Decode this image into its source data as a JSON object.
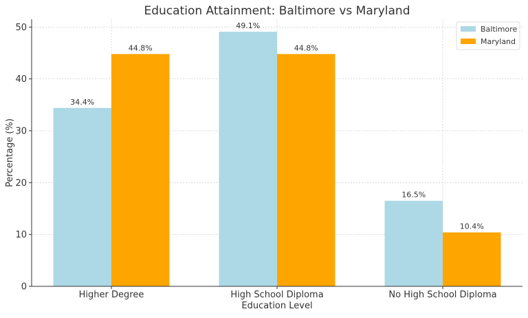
{
  "chart_data": {
    "type": "bar",
    "title": "Education Attainment: Baltimore vs Maryland",
    "xlabel": "Education Level",
    "ylabel": "Percentage (%)",
    "ylim": [
      0,
      51.5
    ],
    "yticks": [
      0,
      10,
      20,
      30,
      40,
      50
    ],
    "grid": true,
    "legend_position": "upper right",
    "categories": [
      "Higher Degree",
      "High School Diploma",
      "No High School Diploma"
    ],
    "series": [
      {
        "name": "Baltimore",
        "color": "#add8e6",
        "values": [
          34.4,
          49.1,
          16.5
        ]
      },
      {
        "name": "Maryland",
        "color": "#ffa500",
        "values": [
          44.8,
          44.8,
          10.4
        ]
      }
    ],
    "value_label_suffix": "%"
  }
}
